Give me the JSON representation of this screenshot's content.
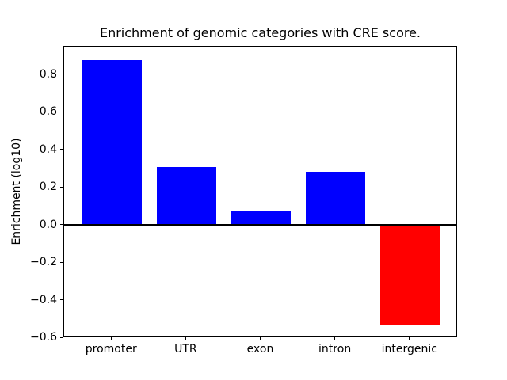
{
  "figure": {
    "background": "#ffffff"
  },
  "chart_data": {
    "type": "bar",
    "title": "Enrichment of genomic categories with CRE score.",
    "xlabel": "",
    "ylabel": "Enrichment (log10)",
    "categories": [
      "promoter",
      "UTR",
      "exon",
      "intron",
      "intergenic"
    ],
    "values": [
      0.88,
      0.31,
      0.075,
      0.285,
      -0.53
    ],
    "bar_colors": [
      "#0000ff",
      "#0000ff",
      "#0000ff",
      "#0000ff",
      "#ff0000"
    ],
    "positive_color": "#0000ff",
    "negative_color": "#ff0000",
    "bar_width": 0.8,
    "xlim": [
      -0.64,
      4.64
    ],
    "ylim": [
      -0.6,
      0.95
    ],
    "yticks": [
      0.8,
      0.6,
      0.4,
      0.2,
      0.0,
      -0.2,
      -0.4,
      -0.6
    ],
    "ytick_labels": [
      "0.8",
      "0.6",
      "0.4",
      "0.2",
      "0.0",
      "−0.2",
      "−0.4",
      "−0.6"
    ],
    "zero_line": true,
    "grid": false,
    "legend_position": "none",
    "axis_color": "#000000",
    "text_color": "#000000"
  }
}
